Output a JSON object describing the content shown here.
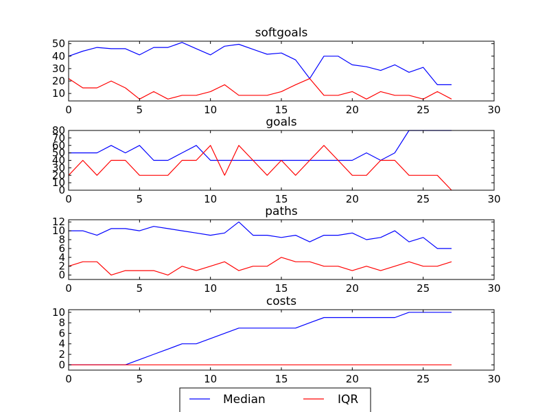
{
  "colors": {
    "median": "#0000ff",
    "iqr": "#ff0000"
  },
  "legend": {
    "placement": "bottom-center",
    "entries": [
      "Median",
      "IQR"
    ]
  },
  "chart_data": [
    {
      "type": "line",
      "title": "softgoals",
      "xlim": [
        0,
        30
      ],
      "ylim": [
        4,
        52
      ],
      "xticks": [
        0,
        5,
        10,
        15,
        20,
        25,
        30
      ],
      "yticks": [
        10,
        20,
        30,
        40,
        50
      ],
      "x": [
        0,
        1,
        2,
        3,
        4,
        5,
        6,
        7,
        8,
        9,
        10,
        11,
        12,
        13,
        14,
        15,
        16,
        17,
        18,
        19,
        20,
        21,
        22,
        23,
        24,
        25,
        26,
        27
      ],
      "series": [
        {
          "name": "Median",
          "values": [
            40,
            44,
            47,
            46,
            46,
            41,
            47,
            47,
            51,
            46,
            41,
            48,
            49.5,
            45.5,
            41.5,
            42.5,
            37,
            22,
            40,
            40,
            33,
            31.5,
            28.5,
            33,
            27,
            31,
            17,
            17
          ]
        },
        {
          "name": "IQR",
          "values": [
            22,
            14.5,
            14.5,
            20,
            14.5,
            5.5,
            11.5,
            5.5,
            8.5,
            8.5,
            11.5,
            17,
            8.5,
            8.5,
            8.5,
            11.5,
            17,
            22,
            8.5,
            8.5,
            11.5,
            5.5,
            11.5,
            8.5,
            8.5,
            5.5,
            11.5,
            5.5
          ]
        }
      ]
    },
    {
      "type": "line",
      "title": "goals",
      "xlim": [
        0,
        30
      ],
      "ylim": [
        0,
        80
      ],
      "xticks": [
        0,
        5,
        10,
        15,
        20,
        25,
        30
      ],
      "yticks": [
        0,
        10,
        20,
        30,
        40,
        50,
        60,
        70,
        80
      ],
      "x": [
        0,
        1,
        2,
        3,
        4,
        5,
        6,
        7,
        8,
        9,
        10,
        11,
        12,
        13,
        14,
        15,
        16,
        17,
        18,
        19,
        20,
        21,
        22,
        23,
        24,
        25,
        26,
        27
      ],
      "series": [
        {
          "name": "Median",
          "values": [
            50,
            50,
            50,
            60,
            50,
            60,
            40,
            40,
            50,
            60,
            40,
            40,
            40,
            40,
            40,
            40,
            40,
            40,
            40,
            40,
            40,
            50,
            40,
            50,
            80,
            80,
            80,
            80
          ]
        },
        {
          "name": "IQR",
          "values": [
            20,
            40,
            20,
            40,
            40,
            20,
            20,
            20,
            40,
            40,
            60,
            20,
            60,
            40,
            20,
            40,
            20,
            40,
            60,
            40,
            20,
            20,
            40,
            40,
            20,
            20,
            20,
            0
          ]
        }
      ]
    },
    {
      "type": "line",
      "title": "paths",
      "xlim": [
        0,
        30
      ],
      "ylim": [
        -1,
        12.5
      ],
      "xticks": [
        0,
        5,
        10,
        15,
        20,
        25,
        30
      ],
      "yticks": [
        0,
        2,
        4,
        6,
        8,
        10,
        12
      ],
      "x": [
        0,
        1,
        2,
        3,
        4,
        5,
        6,
        7,
        8,
        9,
        10,
        11,
        12,
        13,
        14,
        15,
        16,
        17,
        18,
        19,
        20,
        21,
        22,
        23,
        24,
        25,
        26,
        27
      ],
      "series": [
        {
          "name": "Median",
          "values": [
            10,
            10,
            9,
            10.5,
            10.5,
            10,
            11,
            10.5,
            10,
            9.5,
            9,
            9.5,
            12,
            9,
            9,
            8.5,
            9,
            7.5,
            9,
            9,
            9.5,
            8,
            8.5,
            10,
            7.5,
            8.5,
            6,
            6
          ]
        },
        {
          "name": "IQR",
          "values": [
            2,
            3,
            3,
            0,
            1,
            1,
            1,
            0,
            2,
            1,
            2,
            3,
            1,
            2,
            2,
            4,
            3,
            3,
            2,
            2,
            1,
            2,
            1,
            2,
            3,
            2,
            2,
            3
          ]
        }
      ]
    },
    {
      "type": "line",
      "title": "costs",
      "xlim": [
        0,
        30
      ],
      "ylim": [
        -1,
        10.5
      ],
      "xticks": [
        0,
        5,
        10,
        15,
        20,
        25,
        30
      ],
      "yticks": [
        0,
        2,
        4,
        6,
        8,
        10
      ],
      "x": [
        0,
        1,
        2,
        3,
        4,
        5,
        6,
        7,
        8,
        9,
        10,
        11,
        12,
        13,
        14,
        15,
        16,
        17,
        18,
        19,
        20,
        21,
        22,
        23,
        24,
        25,
        26,
        27
      ],
      "series": [
        {
          "name": "Median",
          "values": [
            0,
            0,
            0,
            0,
            0,
            1,
            2,
            3,
            4,
            4,
            5,
            6,
            7,
            7,
            7,
            7,
            7,
            8,
            9,
            9,
            9,
            9,
            9,
            9,
            10,
            10,
            10,
            10
          ]
        },
        {
          "name": "IQR",
          "values": [
            0,
            0,
            0,
            0,
            0,
            0,
            0,
            0,
            0,
            0,
            0,
            0,
            0,
            0,
            0,
            0,
            0,
            0,
            0,
            0,
            0,
            0,
            0,
            0,
            0,
            0,
            0,
            0
          ]
        }
      ]
    }
  ]
}
